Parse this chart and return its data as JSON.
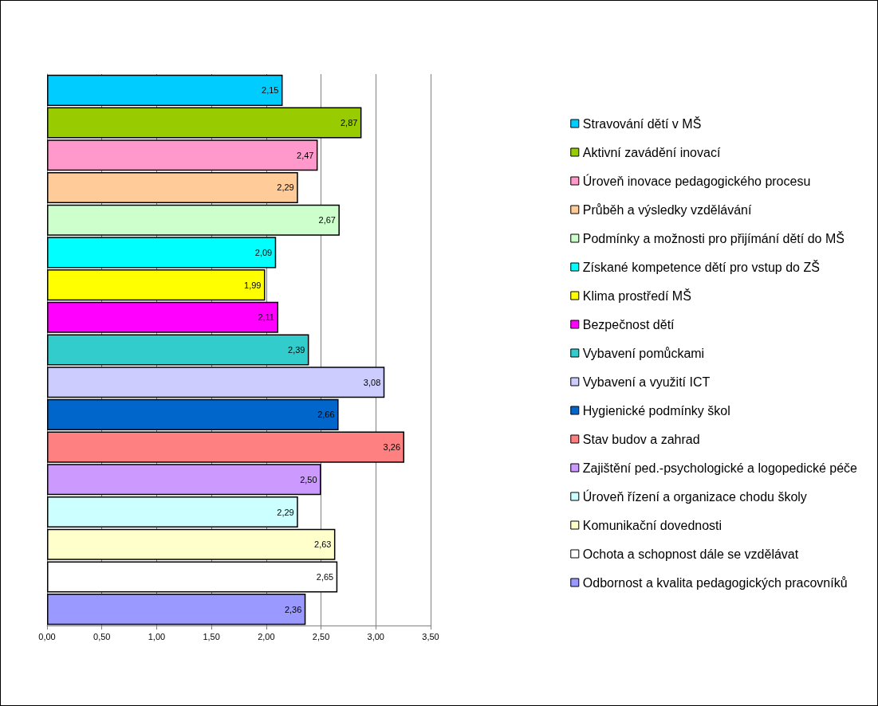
{
  "chart_data": {
    "type": "bar",
    "orientation": "horizontal",
    "stacked": true,
    "categories": [
      null,
      null,
      null,
      null,
      null,
      null,
      null,
      null,
      null,
      null,
      null,
      null,
      null,
      null,
      null,
      null,
      null
    ],
    "series": [
      {
        "name": "Stravování dětí v MŠ",
        "color": "#00ccff",
        "values": [
          2.15,
          null,
          null,
          null,
          null,
          null,
          null,
          null,
          null,
          null,
          null,
          null,
          null,
          null,
          null,
          null,
          null
        ],
        "value_labels": [
          "2,15",
          null,
          null,
          null,
          null,
          null,
          null,
          null,
          null,
          null,
          null,
          null,
          null,
          null,
          null,
          null,
          null
        ]
      },
      {
        "name": "Aktivní zavádění inovací",
        "color": "#99cc00",
        "values": [
          null,
          2.87,
          null,
          null,
          null,
          null,
          null,
          null,
          null,
          null,
          null,
          null,
          null,
          null,
          null,
          null,
          null
        ],
        "value_labels": [
          null,
          "2,87",
          null,
          null,
          null,
          null,
          null,
          null,
          null,
          null,
          null,
          null,
          null,
          null,
          null,
          null,
          null
        ]
      },
      {
        "name": "Úroveň inovace pedagogického procesu",
        "color": "#ff99cc",
        "values": [
          null,
          null,
          2.47,
          null,
          null,
          null,
          null,
          null,
          null,
          null,
          null,
          null,
          null,
          null,
          null,
          null,
          null
        ],
        "value_labels": [
          null,
          null,
          "2,47",
          null,
          null,
          null,
          null,
          null,
          null,
          null,
          null,
          null,
          null,
          null,
          null,
          null,
          null
        ]
      },
      {
        "name": "Průběh a výsledky vzdělávání",
        "color": "#ffcc99",
        "values": [
          null,
          null,
          null,
          2.29,
          null,
          null,
          null,
          null,
          null,
          null,
          null,
          null,
          null,
          null,
          null,
          null,
          null
        ],
        "value_labels": [
          null,
          null,
          null,
          "2,29",
          null,
          null,
          null,
          null,
          null,
          null,
          null,
          null,
          null,
          null,
          null,
          null,
          null
        ]
      },
      {
        "name": "Podmínky a možnosti pro přijímání dětí do MŠ",
        "color": "#ccffcc",
        "values": [
          null,
          null,
          null,
          null,
          2.67,
          null,
          null,
          null,
          null,
          null,
          null,
          null,
          null,
          null,
          null,
          null,
          null
        ],
        "value_labels": [
          null,
          null,
          null,
          null,
          "2,67",
          null,
          null,
          null,
          null,
          null,
          null,
          null,
          null,
          null,
          null,
          null,
          null
        ]
      },
      {
        "name": "Získané kompetence dětí pro vstup do ZŠ",
        "color": "#00ffff",
        "values": [
          null,
          null,
          null,
          null,
          null,
          2.09,
          null,
          null,
          null,
          null,
          null,
          null,
          null,
          null,
          null,
          null,
          null
        ],
        "value_labels": [
          null,
          null,
          null,
          null,
          null,
          "2,09",
          null,
          null,
          null,
          null,
          null,
          null,
          null,
          null,
          null,
          null,
          null
        ]
      },
      {
        "name": "Klima prostředí MŠ",
        "color": "#ffff00",
        "values": [
          null,
          null,
          null,
          null,
          null,
          null,
          1.99,
          null,
          null,
          null,
          null,
          null,
          null,
          null,
          null,
          null,
          null
        ],
        "value_labels": [
          null,
          null,
          null,
          null,
          null,
          null,
          "1,99",
          null,
          null,
          null,
          null,
          null,
          null,
          null,
          null,
          null,
          null
        ]
      },
      {
        "name": "Bezpečnost dětí",
        "color": "#ff00ff",
        "values": [
          null,
          null,
          null,
          null,
          null,
          null,
          null,
          2.11,
          null,
          null,
          null,
          null,
          null,
          null,
          null,
          null,
          null
        ],
        "value_labels": [
          null,
          null,
          null,
          null,
          null,
          null,
          null,
          "2,11",
          null,
          null,
          null,
          null,
          null,
          null,
          null,
          null,
          null
        ]
      },
      {
        "name": "Vybavení pomůckami",
        "color": "#33cccc",
        "values": [
          null,
          null,
          null,
          null,
          null,
          null,
          null,
          null,
          2.39,
          null,
          null,
          null,
          null,
          null,
          null,
          null,
          null
        ],
        "value_labels": [
          null,
          null,
          null,
          null,
          null,
          null,
          null,
          null,
          "2,39",
          null,
          null,
          null,
          null,
          null,
          null,
          null,
          null
        ]
      },
      {
        "name": "Vybavení a využití ICT",
        "color": "#ccccff",
        "values": [
          null,
          null,
          null,
          null,
          null,
          null,
          null,
          null,
          null,
          3.08,
          null,
          null,
          null,
          null,
          null,
          null,
          null
        ],
        "value_labels": [
          null,
          null,
          null,
          null,
          null,
          null,
          null,
          null,
          null,
          "3,08",
          null,
          null,
          null,
          null,
          null,
          null,
          null
        ]
      },
      {
        "name": "Hygienické podmínky škol",
        "color": "#0066cc",
        "values": [
          null,
          null,
          null,
          null,
          null,
          null,
          null,
          null,
          null,
          null,
          2.66,
          null,
          null,
          null,
          null,
          null,
          null
        ],
        "value_labels": [
          null,
          null,
          null,
          null,
          null,
          null,
          null,
          null,
          null,
          null,
          "2,66",
          null,
          null,
          null,
          null,
          null,
          null
        ]
      },
      {
        "name": "Stav budov a zahrad",
        "color": "#ff8080",
        "values": [
          null,
          null,
          null,
          null,
          null,
          null,
          null,
          null,
          null,
          null,
          null,
          3.26,
          null,
          null,
          null,
          null,
          null
        ],
        "value_labels": [
          null,
          null,
          null,
          null,
          null,
          null,
          null,
          null,
          null,
          null,
          null,
          "3,26",
          null,
          null,
          null,
          null,
          null
        ]
      },
      {
        "name": "Zajištění ped.-psychologické a logopedické péče",
        "color": "#cc99ff",
        "values": [
          null,
          null,
          null,
          null,
          null,
          null,
          null,
          null,
          null,
          null,
          null,
          null,
          2.5,
          null,
          null,
          null,
          null
        ],
        "value_labels": [
          null,
          null,
          null,
          null,
          null,
          null,
          null,
          null,
          null,
          null,
          null,
          null,
          "2,50",
          null,
          null,
          null,
          null
        ]
      },
      {
        "name": "Úroveň řízení a organizace chodu školy",
        "color": "#ccffff",
        "values": [
          null,
          null,
          null,
          null,
          null,
          null,
          null,
          null,
          null,
          null,
          null,
          null,
          null,
          2.29,
          null,
          null,
          null
        ],
        "value_labels": [
          null,
          null,
          null,
          null,
          null,
          null,
          null,
          null,
          null,
          null,
          null,
          null,
          null,
          "2,29",
          null,
          null,
          null
        ]
      },
      {
        "name": "Komunikační dovednosti",
        "color": "#ffffcc",
        "values": [
          null,
          null,
          null,
          null,
          null,
          null,
          null,
          null,
          null,
          null,
          null,
          null,
          null,
          null,
          2.63,
          null,
          null
        ],
        "value_labels": [
          null,
          null,
          null,
          null,
          null,
          null,
          null,
          null,
          null,
          null,
          null,
          null,
          null,
          null,
          "2,63",
          null,
          null
        ]
      },
      {
        "name": "Ochota a schopnost dále se vzdělávat",
        "color": "#ffffff",
        "values": [
          null,
          null,
          null,
          null,
          null,
          null,
          null,
          null,
          null,
          null,
          null,
          null,
          null,
          null,
          null,
          2.65,
          null
        ],
        "value_labels": [
          null,
          null,
          null,
          null,
          null,
          null,
          null,
          null,
          null,
          null,
          null,
          null,
          null,
          null,
          null,
          "2,65",
          null
        ]
      },
      {
        "name": "Odbornost a kvalita pedagogických pracovníků",
        "color": "#9999ff",
        "values": [
          null,
          null,
          null,
          null,
          null,
          null,
          null,
          null,
          null,
          null,
          null,
          null,
          null,
          null,
          null,
          null,
          2.36
        ],
        "value_labels": [
          null,
          null,
          null,
          null,
          null,
          null,
          null,
          null,
          null,
          null,
          null,
          null,
          null,
          null,
          null,
          null,
          "2,36"
        ]
      }
    ],
    "xlim": [
      0,
      3.5
    ],
    "xticks": [
      {
        "value": 0,
        "label": "0,00"
      },
      {
        "value": 0.5,
        "label": "0,50"
      },
      {
        "value": 1,
        "label": "1,00"
      },
      {
        "value": 1.5,
        "label": "1,50"
      },
      {
        "value": 2,
        "label": "2,00"
      },
      {
        "value": 2.5,
        "label": "2,50"
      },
      {
        "value": 3,
        "label": "3,00"
      },
      {
        "value": 3.5,
        "label": "3,50"
      }
    ],
    "grid": "x",
    "legend": "right"
  }
}
